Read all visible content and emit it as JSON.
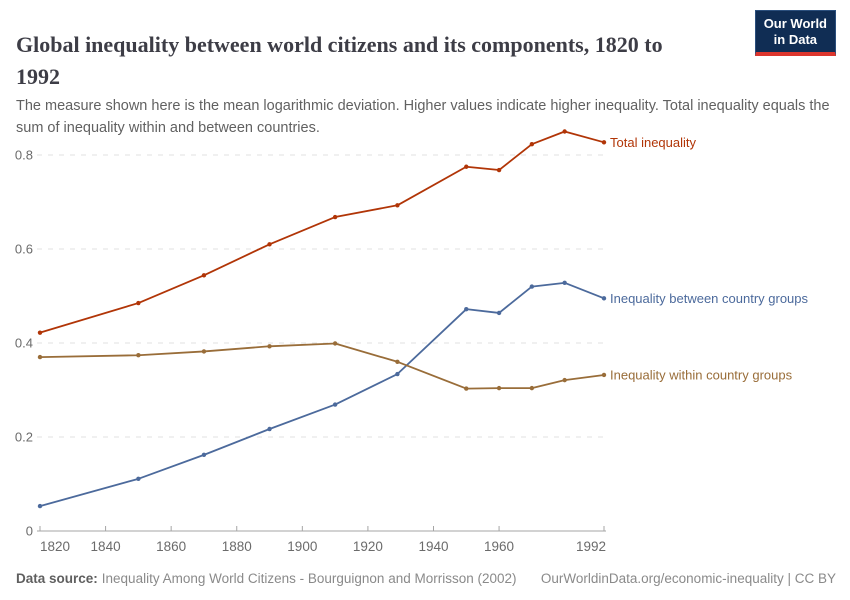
{
  "header": {
    "title_line1": "Global inequality between world citizens and its components, 1820 to",
    "title_line2": "1992",
    "subtitle": "The measure shown here is the mean logarithmic deviation. Higher values indicate higher inequality. Total inequality equals the sum of inequality within and between countries."
  },
  "logo": {
    "line1": "Our World",
    "line2": "in Data",
    "bg_color": "#102d54",
    "accent_color": "#dc352d"
  },
  "chart_data": {
    "type": "line",
    "title": "Global inequality between world citizens and its components, 1820 to 1992",
    "xlabel": "",
    "ylabel": "",
    "x": [
      1820,
      1850,
      1870,
      1890,
      1910,
      1929,
      1950,
      1960,
      1970,
      1980,
      1992
    ],
    "series": [
      {
        "name": "Total inequality",
        "color": "#B13507",
        "values": [
          0.422,
          0.485,
          0.544,
          0.61,
          0.668,
          0.693,
          0.775,
          0.768,
          0.823,
          0.85,
          0.827
        ]
      },
      {
        "name": "Inequality between country groups",
        "color": "#4C6A9C",
        "values": [
          0.053,
          0.111,
          0.162,
          0.217,
          0.269,
          0.334,
          0.472,
          0.464,
          0.52,
          0.528,
          0.495
        ]
      },
      {
        "name": "Inequality within country groups",
        "color": "#996D39",
        "values": [
          0.37,
          0.374,
          0.382,
          0.393,
          0.399,
          0.36,
          0.303,
          0.304,
          0.304,
          0.321,
          0.332
        ]
      }
    ],
    "xlim": [
      1820,
      1992
    ],
    "ylim": [
      0,
      0.86
    ],
    "yticks": [
      0,
      0.2,
      0.4,
      0.6,
      0.8
    ],
    "ytick_labels": [
      "0",
      "0.2",
      "0.4",
      "0.6",
      "0.8"
    ],
    "xticks": [
      1820,
      1840,
      1860,
      1880,
      1900,
      1920,
      1940,
      1960,
      1992
    ],
    "xtick_labels": [
      "1820",
      "1840",
      "1860",
      "1880",
      "1900",
      "1920",
      "1940",
      "1960",
      "1992"
    ],
    "grid": "horizontal-dashed",
    "legend": "end-of-line-labels",
    "grid_color": "#e1e1e1",
    "axis_color": "#a5a5a5",
    "tick_label_color": "#6b6b6b"
  },
  "footer": {
    "data_source_label": "Data source:",
    "data_source_value": "Inequality Among World Citizens - Bourguignon and Morrisson (2002)",
    "attribution": "OurWorldinData.org/economic-inequality | CC BY"
  }
}
